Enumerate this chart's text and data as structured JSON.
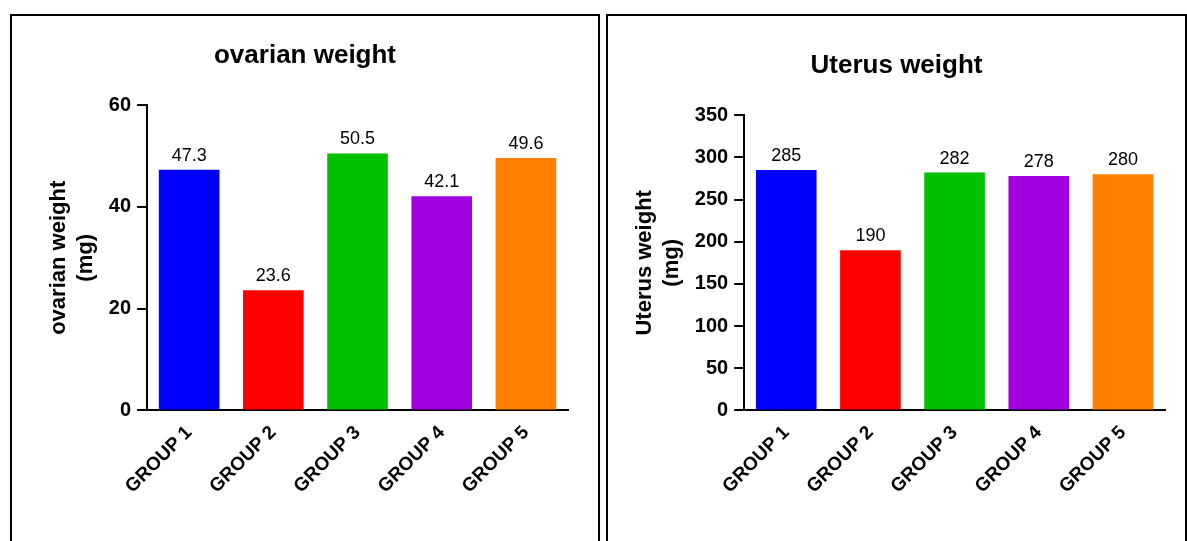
{
  "chart_data": [
    {
      "type": "bar",
      "title": "ovarian weight",
      "ylabel": "ovarian weight\n(mg)",
      "categories": [
        "GROUP 1",
        "GROUP 2",
        "GROUP 3",
        "GROUP 4",
        "GROUP 5"
      ],
      "values": [
        47.3,
        23.6,
        50.5,
        42.1,
        49.6
      ],
      "colors": [
        "#0000ff",
        "#ff0000",
        "#00c000",
        "#a000e0",
        "#ff8000"
      ],
      "ylim": [
        0,
        60
      ],
      "yticks": [
        0,
        20,
        40,
        60
      ],
      "grid": false,
      "legend": false,
      "data_labels": true
    },
    {
      "type": "bar",
      "title": "Uterus weight",
      "ylabel": "Uterus weight\n(mg)",
      "categories": [
        "GROUP 1",
        "GROUP 2",
        "GROUP 3",
        "GROUP 4",
        "GROUP 5"
      ],
      "values": [
        285,
        190,
        282,
        278,
        280
      ],
      "colors": [
        "#0000ff",
        "#ff0000",
        "#00c000",
        "#a000e0",
        "#ff8000"
      ],
      "ylim": [
        0,
        350
      ],
      "yticks": [
        0,
        50,
        100,
        150,
        200,
        250,
        300,
        350
      ],
      "grid": false,
      "legend": false,
      "data_labels": true
    }
  ]
}
